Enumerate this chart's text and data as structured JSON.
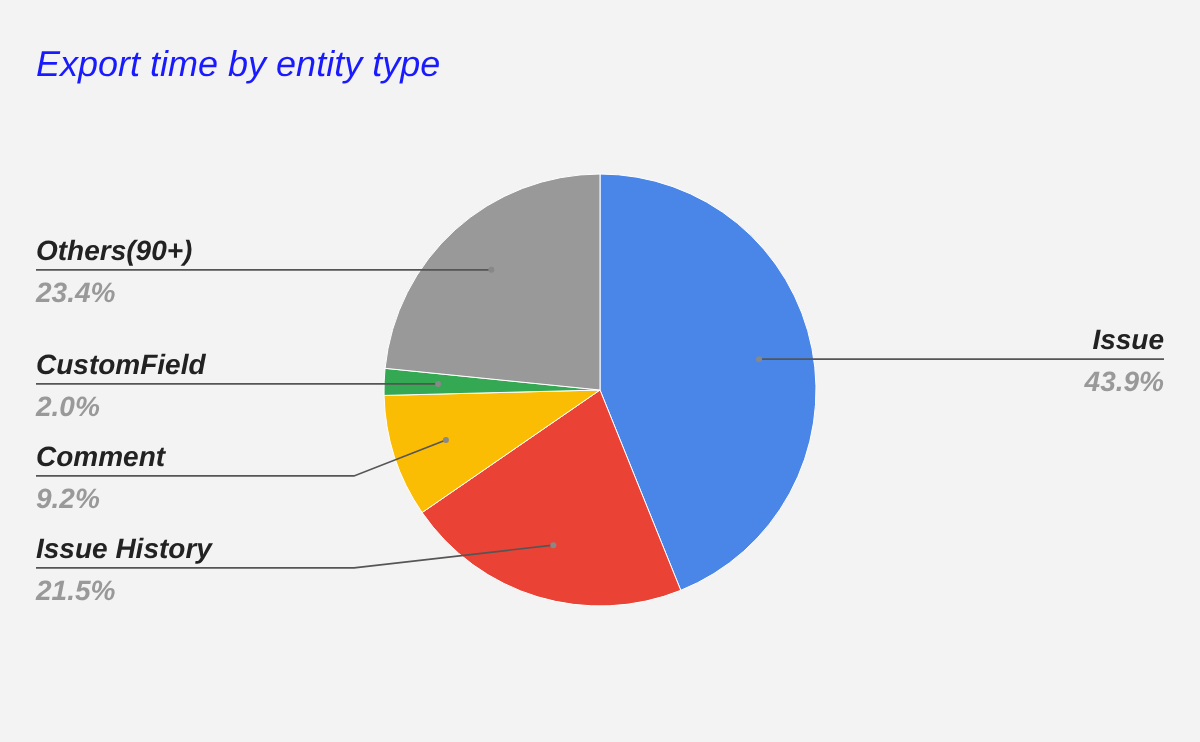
{
  "chart_data": {
    "type": "pie",
    "title": "Export time by entity type",
    "categories": [
      "Issue",
      "Issue History",
      "Comment",
      "CustomField",
      "Others(90+)"
    ],
    "values": [
      43.9,
      21.5,
      9.2,
      2.0,
      23.4
    ],
    "value_labels": [
      "43.9%",
      "21.5%",
      "9.2%",
      "2.0%",
      "23.4%"
    ],
    "colors": [
      "#4a86e8",
      "#ea4335",
      "#fbbc04",
      "#34a853",
      "#999999"
    ]
  }
}
